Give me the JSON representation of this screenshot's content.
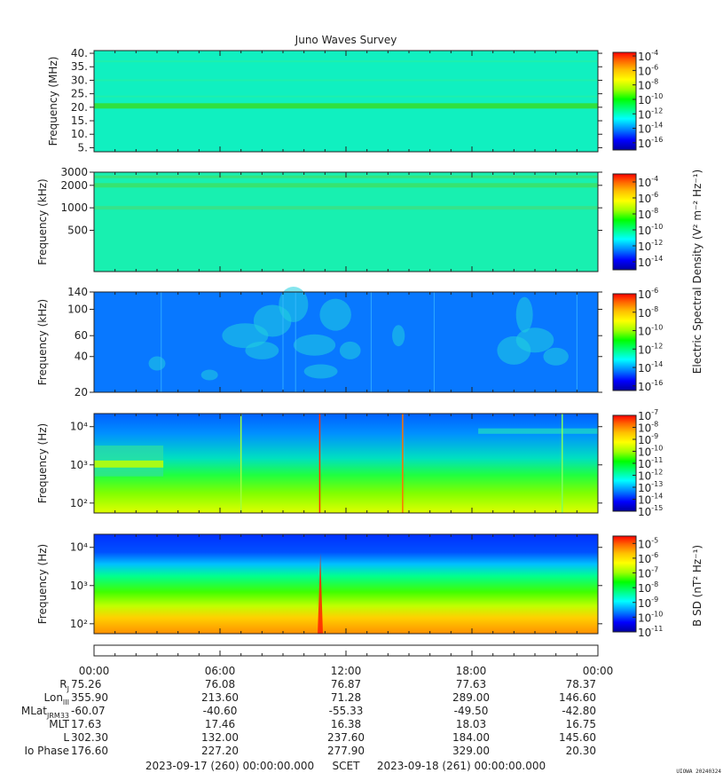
{
  "chart_data": {
    "type": "heatmap",
    "title": "Juno Waves Survey",
    "colors": {
      "colorbar": [
        "#0000a0",
        "#0000ff",
        "#0090ff",
        "#00ffff",
        "#00ff80",
        "#00ff00",
        "#a0ff00",
        "#ffff00",
        "#ffc000",
        "#ff6000",
        "#ff0000"
      ]
    },
    "panels": [
      {
        "ylabel": "Frequency (MHz)",
        "ylog": false,
        "ylim": [
          3.5,
          41
        ],
        "yticks": [
          "5.",
          "10.",
          "15.",
          "20.",
          "25.",
          "30.",
          "35.",
          "40."
        ],
        "ytick_values": [
          5,
          10,
          15,
          20,
          25,
          30,
          35,
          40
        ],
        "colorbar_ticks": [
          "-16",
          "-14",
          "-12",
          "-10",
          "-8",
          "-6",
          "-4"
        ],
        "colorbar_range": [
          -17,
          -3.5
        ],
        "background": "cyan-green",
        "features": [
          "band near 20.5 MHz"
        ]
      },
      {
        "ylabel": "Frequency (kHz)",
        "ylog": true,
        "ylim": [
          140,
          3000
        ],
        "yticks": [
          "500",
          "1000",
          "2000",
          "3000"
        ],
        "ytick_values": [
          500,
          1000,
          2000,
          3000
        ],
        "colorbar_ticks": [
          "-14",
          "-12",
          "-10",
          "-8",
          "-6",
          "-4"
        ],
        "colorbar_range": [
          -15,
          -3
        ],
        "features": [
          "band near 2000 kHz",
          "band near 1000 kHz"
        ]
      },
      {
        "ylabel": "Frequency (kHz)",
        "ylog": true,
        "ylim": [
          20,
          140
        ],
        "yticks": [
          "20",
          "40",
          "60",
          "100",
          "140"
        ],
        "ytick_values": [
          20,
          40,
          60,
          100,
          140
        ],
        "colorbar_ticks": [
          "-16",
          "-14",
          "-12",
          "-10",
          "-8",
          "-6"
        ],
        "colorbar_range": [
          -16.5,
          -6
        ],
        "features": [
          "patchy emission 07:00–12:00",
          "emission 19:30–22:00"
        ]
      },
      {
        "ylabel": "Frequency (Hz)",
        "ylog": true,
        "ylim": [
          55,
          22000
        ],
        "yticks": [
          "10²",
          "10³",
          "10⁴"
        ],
        "ytick_values": [
          100,
          1000,
          10000
        ],
        "colorbar_ticks": [
          "-15",
          "-14",
          "-13",
          "-12",
          "-11",
          "-10",
          "-9",
          "-8",
          "-7"
        ],
        "colorbar_range": [
          -15,
          -7
        ],
        "features": [
          "enhanced emission 00:00–03:20 near 1 kHz",
          "spikes at 10:45, 14:40"
        ]
      },
      {
        "ylabel": "Frequency (Hz)",
        "ylog": true,
        "ylim": [
          55,
          22000
        ],
        "yticks": [
          "10²",
          "10³",
          "10⁴"
        ],
        "ytick_values": [
          100,
          1000,
          10000
        ],
        "colorbar_ticks": [
          "-11",
          "-10",
          "-9",
          "-8",
          "-7",
          "-6",
          "-5"
        ],
        "colorbar_range": [
          -11,
          -4.5
        ],
        "features": [
          "spike at 10:45"
        ]
      }
    ],
    "colorbar_label_top": "Electric Spectral Density (V² m⁻² Hz⁻¹)",
    "colorbar_label_bottom": "B SD (nT² Hz⁻¹)",
    "x": {
      "type": "time",
      "range": [
        "2023-09-17 00:00",
        "2023-09-18 00:00"
      ],
      "tick_hours": [
        0,
        6,
        12,
        18,
        24
      ]
    },
    "ephemeris": {
      "times": [
        "00:00",
        "06:00",
        "12:00",
        "18:00",
        "00:00"
      ],
      "rows": [
        {
          "label": "R",
          "sub": "J",
          "values": [
            "75.26",
            "76.08",
            "76.87",
            "77.63",
            "78.37"
          ]
        },
        {
          "label": "Lon",
          "sub": "III",
          "values": [
            "355.90",
            "213.60",
            "71.28",
            "289.00",
            "146.60"
          ]
        },
        {
          "label": "MLat",
          "sub": "JRM33",
          "values": [
            "-60.07",
            "-40.60",
            "-55.33",
            "-49.50",
            "-42.80"
          ]
        },
        {
          "label": "MLT",
          "sub": "",
          "values": [
            "17.63",
            "17.46",
            "16.38",
            "18.03",
            "16.75"
          ]
        },
        {
          "label": "L",
          "sub": "",
          "values": [
            "302.30",
            "132.00",
            "237.60",
            "184.00",
            "145.60"
          ]
        },
        {
          "label": "Io Phase",
          "sub": "",
          "values": [
            "176.60",
            "227.20",
            "277.90",
            "329.00",
            "20.30"
          ]
        }
      ]
    },
    "footer": {
      "start": "2023-09-17 (260) 00:00:00.000",
      "scet": "SCET",
      "end": "2023-09-18 (261) 00:00:00.000"
    },
    "credit": "UIOWA 20240324"
  }
}
